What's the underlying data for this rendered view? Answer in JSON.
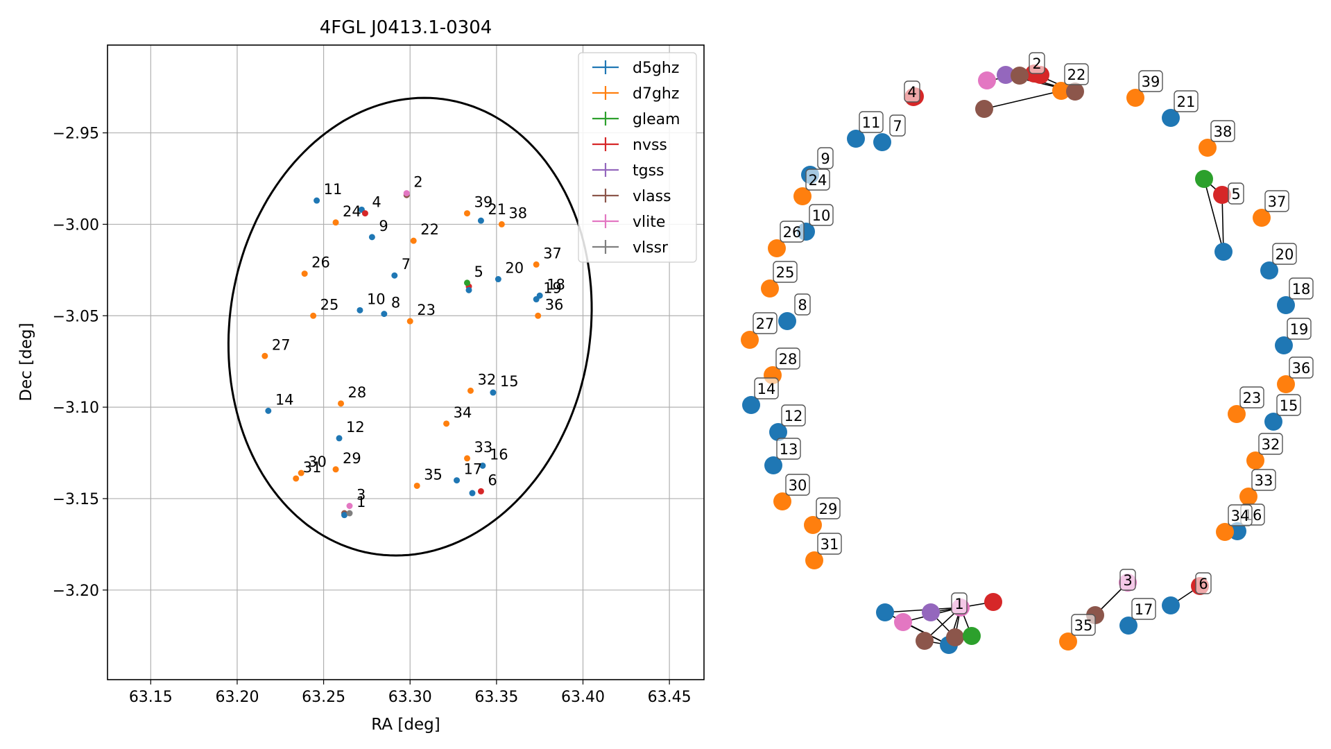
{
  "chart_data": [
    {
      "type": "scatter",
      "title": "4FGL J0413.1-0304",
      "xlabel": "RA [deg]",
      "ylabel": "Dec [deg]",
      "xlim": [
        63.125,
        63.47
      ],
      "ylim": [
        -3.249,
        -2.902
      ],
      "xticks": [
        63.15,
        63.2,
        63.25,
        63.3,
        63.35,
        63.4,
        63.45
      ],
      "xtick_labels": [
        "63.15",
        "63.20",
        "63.25",
        "63.30",
        "63.35",
        "63.40",
        "63.45"
      ],
      "yticks": [
        -2.95,
        -3.0,
        -3.05,
        -3.1,
        -3.15,
        -3.2
      ],
      "ytick_labels": [
        "−2.95",
        "−3.00",
        "−3.05",
        "−3.10",
        "−3.15",
        "−3.20"
      ],
      "grid": true,
      "legend_position": "top-right",
      "series": [
        {
          "name": "d5ghz",
          "color": "#1f77b4"
        },
        {
          "name": "d7ghz",
          "color": "#ff7f0e"
        },
        {
          "name": "gleam",
          "color": "#2ca02c"
        },
        {
          "name": "nvss",
          "color": "#d62728"
        },
        {
          "name": "tgss",
          "color": "#9467bd"
        },
        {
          "name": "vlass",
          "color": "#8c564b"
        },
        {
          "name": "vlite",
          "color": "#e377c2"
        },
        {
          "name": "vlssr",
          "color": "#7f7f7f"
        }
      ],
      "ellipse": {
        "ra_center": 63.3,
        "dec_center": -3.056,
        "ra_semi_axis": 0.104,
        "dec_semi_axis": 0.126,
        "angle_deg": -12
      },
      "points": [
        {
          "label": "1",
          "ra": 63.265,
          "dec": -3.158,
          "series": "vlssr"
        },
        {
          "label": "2",
          "ra": 63.298,
          "dec": -2.983,
          "series": "vlite"
        },
        {
          "label": "3",
          "ra": 63.265,
          "dec": -3.154,
          "series": "vlite"
        },
        {
          "label": "4",
          "ra": 63.274,
          "dec": -2.994,
          "series": "nvss"
        },
        {
          "label": "5",
          "ra": 63.333,
          "dec": -3.032,
          "series": "gleam"
        },
        {
          "label": "6",
          "ra": 63.341,
          "dec": -3.146,
          "series": "nvss"
        },
        {
          "label": "7",
          "ra": 63.291,
          "dec": -3.028,
          "series": "d5ghz"
        },
        {
          "label": "8",
          "ra": 63.285,
          "dec": -3.049,
          "series": "d5ghz"
        },
        {
          "label": "9",
          "ra": 63.278,
          "dec": -3.007,
          "series": "d5ghz"
        },
        {
          "label": "10",
          "ra": 63.271,
          "dec": -3.047,
          "series": "d5ghz"
        },
        {
          "label": "11",
          "ra": 63.246,
          "dec": -2.987,
          "series": "d5ghz"
        },
        {
          "label": "12",
          "ra": 63.259,
          "dec": -3.117,
          "series": "d5ghz"
        },
        {
          "label": "14",
          "ra": 63.218,
          "dec": -3.102,
          "series": "d5ghz"
        },
        {
          "label": "15",
          "ra": 63.348,
          "dec": -3.092,
          "series": "d5ghz"
        },
        {
          "label": "16",
          "ra": 63.342,
          "dec": -3.132,
          "series": "d5ghz"
        },
        {
          "label": "17",
          "ra": 63.327,
          "dec": -3.14,
          "series": "d5ghz"
        },
        {
          "label": "18",
          "ra": 63.375,
          "dec": -3.039,
          "series": "d5ghz"
        },
        {
          "label": "19",
          "ra": 63.373,
          "dec": -3.041,
          "series": "d5ghz"
        },
        {
          "label": "20",
          "ra": 63.351,
          "dec": -3.03,
          "series": "d5ghz"
        },
        {
          "label": "21",
          "ra": 63.341,
          "dec": -2.998,
          "series": "d5ghz"
        },
        {
          "label": "22",
          "ra": 63.302,
          "dec": -3.009,
          "series": "d7ghz"
        },
        {
          "label": "23",
          "ra": 63.3,
          "dec": -3.053,
          "series": "d7ghz"
        },
        {
          "label": "24",
          "ra": 63.257,
          "dec": -2.999,
          "series": "d7ghz"
        },
        {
          "label": "25",
          "ra": 63.244,
          "dec": -3.05,
          "series": "d7ghz"
        },
        {
          "label": "26",
          "ra": 63.239,
          "dec": -3.027,
          "series": "d7ghz"
        },
        {
          "label": "27",
          "ra": 63.216,
          "dec": -3.072,
          "series": "d7ghz"
        },
        {
          "label": "28",
          "ra": 63.26,
          "dec": -3.098,
          "series": "d7ghz"
        },
        {
          "label": "29",
          "ra": 63.257,
          "dec": -3.134,
          "series": "d7ghz"
        },
        {
          "label": "30",
          "ra": 63.237,
          "dec": -3.136,
          "series": "d7ghz"
        },
        {
          "label": "31",
          "ra": 63.234,
          "dec": -3.139,
          "series": "d7ghz"
        },
        {
          "label": "32",
          "ra": 63.335,
          "dec": -3.091,
          "series": "d7ghz"
        },
        {
          "label": "33",
          "ra": 63.333,
          "dec": -3.128,
          "series": "d7ghz"
        },
        {
          "label": "34",
          "ra": 63.321,
          "dec": -3.109,
          "series": "d7ghz"
        },
        {
          "label": "35",
          "ra": 63.304,
          "dec": -3.143,
          "series": "d7ghz"
        },
        {
          "label": "36",
          "ra": 63.374,
          "dec": -3.05,
          "series": "d7ghz"
        },
        {
          "label": "37",
          "ra": 63.373,
          "dec": -3.022,
          "series": "d7ghz"
        },
        {
          "label": "38",
          "ra": 63.353,
          "dec": -3.0,
          "series": "d7ghz"
        },
        {
          "label": "39",
          "ra": 63.333,
          "dec": -2.994,
          "series": "d7ghz"
        }
      ],
      "extra_markers": [
        {
          "ra": 63.262,
          "dec": -3.158,
          "series": "vlass"
        },
        {
          "ra": 63.262,
          "dec": -3.159,
          "series": "d5ghz"
        },
        {
          "ra": 63.298,
          "dec": -2.984,
          "series": "vlass"
        },
        {
          "ra": 63.272,
          "dec": -2.992,
          "series": "d5ghz"
        },
        {
          "ra": 63.334,
          "dec": -3.034,
          "series": "nvss"
        },
        {
          "ra": 63.334,
          "dec": -3.036,
          "series": "d5ghz"
        },
        {
          "ra": 63.336,
          "dec": -3.147,
          "series": "d5ghz"
        }
      ]
    },
    {
      "type": "network",
      "nodes": [
        {
          "label": "1",
          "series": "vlite",
          "labeled": true
        },
        {
          "label": "2",
          "series": "nvss",
          "labeled": true
        },
        {
          "label": "3",
          "series": "vlite",
          "labeled": true
        },
        {
          "label": "4",
          "series": "nvss",
          "labeled": true
        },
        {
          "label": "5",
          "series": "nvss",
          "labeled": true
        },
        {
          "label": "6",
          "series": "nvss",
          "labeled": true
        },
        {
          "label": "7",
          "series": "d5ghz",
          "labeled": true
        },
        {
          "label": "8",
          "series": "d5ghz",
          "labeled": true
        },
        {
          "label": "9",
          "series": "d5ghz",
          "labeled": true
        },
        {
          "label": "10",
          "series": "d5ghz",
          "labeled": true
        },
        {
          "label": "11",
          "series": "d5ghz",
          "labeled": true
        },
        {
          "label": "12",
          "series": "d5ghz",
          "labeled": true
        },
        {
          "label": "13",
          "series": "d5ghz",
          "labeled": true
        },
        {
          "label": "14",
          "series": "d5ghz",
          "labeled": true
        },
        {
          "label": "15",
          "series": "d5ghz",
          "labeled": true
        },
        {
          "label": "16",
          "series": "d5ghz",
          "labeled": true
        },
        {
          "label": "17",
          "series": "d5ghz",
          "labeled": true
        },
        {
          "label": "18",
          "series": "d5ghz",
          "labeled": true
        },
        {
          "label": "19",
          "series": "d5ghz",
          "labeled": true
        },
        {
          "label": "20",
          "series": "d5ghz",
          "labeled": true
        },
        {
          "label": "21",
          "series": "d5ghz",
          "labeled": true
        },
        {
          "label": "22",
          "series": "d7ghz",
          "labeled": true
        },
        {
          "label": "23",
          "series": "d7ghz",
          "labeled": true
        },
        {
          "label": "24",
          "series": "d7ghz",
          "labeled": true
        },
        {
          "label": "25",
          "series": "d7ghz",
          "labeled": true
        },
        {
          "label": "26",
          "series": "d7ghz",
          "labeled": true
        },
        {
          "label": "27",
          "series": "d7ghz",
          "labeled": true
        },
        {
          "label": "28",
          "series": "d7ghz",
          "labeled": true
        },
        {
          "label": "29",
          "series": "d7ghz",
          "labeled": true
        },
        {
          "label": "30",
          "series": "d7ghz",
          "labeled": true
        },
        {
          "label": "31",
          "series": "d7ghz",
          "labeled": true
        },
        {
          "label": "32",
          "series": "d7ghz",
          "labeled": true
        },
        {
          "label": "33",
          "series": "d7ghz",
          "labeled": true
        },
        {
          "label": "34",
          "series": "d7ghz",
          "labeled": true
        },
        {
          "label": "35",
          "series": "d7ghz",
          "labeled": true
        },
        {
          "label": "36",
          "series": "d7ghz",
          "labeled": true
        },
        {
          "label": "37",
          "series": "d7ghz",
          "labeled": true
        },
        {
          "label": "38",
          "series": "d7ghz",
          "labeled": true
        },
        {
          "label": "39",
          "series": "d7ghz",
          "labeled": true
        },
        {
          "label": "b1",
          "series": "d5ghz",
          "labeled": false
        },
        {
          "label": "b2",
          "series": "vlite",
          "labeled": false
        },
        {
          "label": "b3",
          "series": "vlass",
          "labeled": false
        },
        {
          "label": "b4",
          "series": "d5ghz",
          "labeled": false
        },
        {
          "label": "b5",
          "series": "vlass",
          "labeled": false
        },
        {
          "label": "b6",
          "series": "gleam",
          "labeled": false
        },
        {
          "label": "b7",
          "series": "nvss",
          "labeled": false
        },
        {
          "label": "b8",
          "series": "tgss",
          "labeled": false
        },
        {
          "label": "c1",
          "series": "vlite",
          "labeled": false
        },
        {
          "label": "c2",
          "series": "tgss",
          "labeled": false
        },
        {
          "label": "c3",
          "series": "vlass",
          "labeled": false
        },
        {
          "label": "c4",
          "series": "vlass",
          "labeled": false
        },
        {
          "label": "c5",
          "series": "vlass",
          "labeled": false
        },
        {
          "label": "c6",
          "series": "nvss",
          "labeled": false
        },
        {
          "label": "d1",
          "series": "nvss",
          "labeled": false
        },
        {
          "label": "e1",
          "series": "gleam",
          "labeled": false
        },
        {
          "label": "e2",
          "series": "d5ghz",
          "labeled": false
        },
        {
          "label": "f1",
          "series": "vlass",
          "labeled": false
        },
        {
          "label": "g1",
          "series": "d5ghz",
          "labeled": false
        }
      ],
      "edges": [
        [
          "1",
          "b1"
        ],
        [
          "1",
          "b2"
        ],
        [
          "1",
          "b3"
        ],
        [
          "1",
          "b4"
        ],
        [
          "1",
          "b5"
        ],
        [
          "1",
          "b6"
        ],
        [
          "1",
          "b7"
        ],
        [
          "1",
          "b8"
        ],
        [
          "b1",
          "b4"
        ],
        [
          "b2",
          "b4"
        ],
        [
          "b3",
          "b4"
        ],
        [
          "b8",
          "b5"
        ],
        [
          "b5",
          "b6"
        ],
        [
          "b4",
          "b6"
        ],
        [
          "2",
          "c1"
        ],
        [
          "2",
          "c2"
        ],
        [
          "2",
          "c3"
        ],
        [
          "2",
          "c4"
        ],
        [
          "2",
          "c6"
        ],
        [
          "c2",
          "c4"
        ],
        [
          "c3",
          "c4"
        ],
        [
          "22",
          "c5"
        ],
        [
          "22",
          "c4"
        ],
        [
          "4",
          "d1"
        ],
        [
          "5",
          "e1"
        ],
        [
          "5",
          "e2"
        ],
        [
          "e1",
          "e2"
        ],
        [
          "3",
          "f1"
        ],
        [
          "6",
          "g1"
        ]
      ]
    }
  ]
}
